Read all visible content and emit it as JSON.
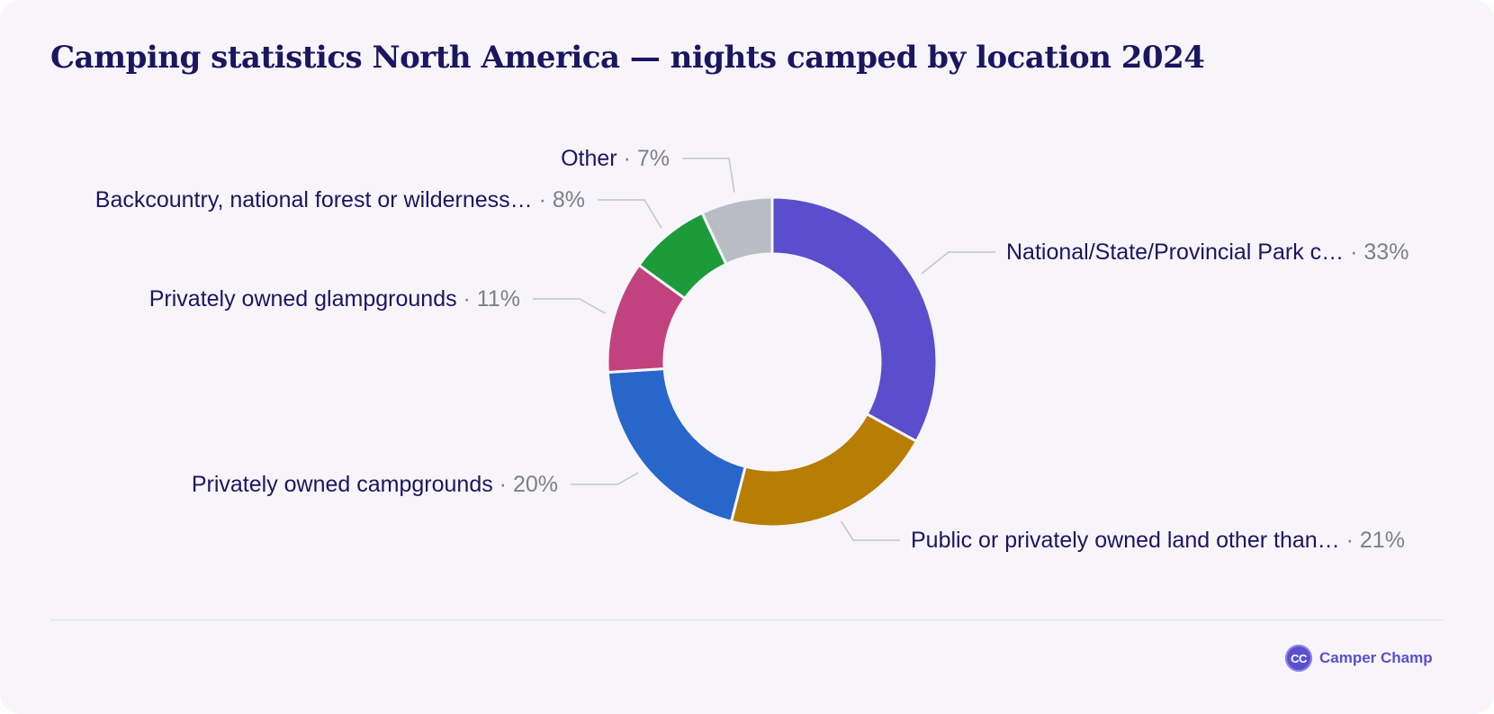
{
  "chart_data": {
    "type": "pie",
    "variant": "donut",
    "title": "Camping statistics North America — nights camped by location 2024",
    "slices": [
      {
        "label": "National/State/Provincial Park c…",
        "value": 33,
        "display": "33%",
        "color": "#5b4ecd"
      },
      {
        "label": "Public or privately owned land other than…",
        "value": 21,
        "display": "21%",
        "color": "#b77d04"
      },
      {
        "label": "Privately owned campgrounds",
        "value": 20,
        "display": "20%",
        "color": "#2866c9"
      },
      {
        "label": "Privately owned glampgrounds",
        "value": 11,
        "display": "11%",
        "color": "#c2427f"
      },
      {
        "label": "Backcountry, national forest or wilderness…",
        "value": 8,
        "display": "8%",
        "color": "#1d9a3a"
      },
      {
        "label": "Other",
        "value": 7,
        "display": "7%",
        "color": "#b9bcc4"
      }
    ],
    "legend": "none"
  },
  "brand": {
    "logo_text": "CC",
    "name": "Camper Champ"
  }
}
